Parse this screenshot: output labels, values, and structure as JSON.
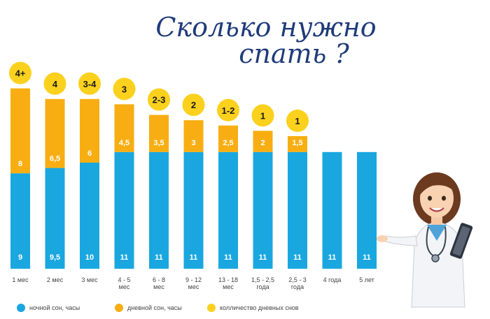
{
  "title": {
    "line1": "Сколько нужно",
    "line2": "спать ?"
  },
  "colors": {
    "night": "#1AA7E0",
    "day": "#F8AE12",
    "naps": "#FBD11E"
  },
  "legend": [
    {
      "label": "ночной сон, часы",
      "color": "#1AA7E0"
    },
    {
      "label": "дневной сон, часы",
      "color": "#F8AE12"
    },
    {
      "label": "колличество дневных снов",
      "color": "#FBD11E"
    }
  ],
  "chart_data": {
    "type": "bar",
    "stacked": true,
    "title": "Сколько нужно спать ?",
    "ylim": [
      0,
      19
    ],
    "categories": [
      [
        "1 мес"
      ],
      [
        "2 мес"
      ],
      [
        "3 мес"
      ],
      [
        "4 - 5",
        "мес"
      ],
      [
        "6 - 8",
        "мес"
      ],
      [
        "9 - 12",
        "мес"
      ],
      [
        "13 - 18",
        "мес"
      ],
      [
        "1,5 - 2,5",
        "года"
      ],
      [
        "2,5 - 3",
        "года"
      ],
      [
        "4 года"
      ],
      [
        "5 лет"
      ]
    ],
    "series": [
      {
        "name": "ночной сон, часы",
        "values": [
          9,
          9.5,
          10,
          11,
          11,
          11,
          11,
          11,
          11,
          11,
          11
        ],
        "labels": [
          "9",
          "9,5",
          "10",
          "11",
          "11",
          "11",
          "11",
          "11",
          "11",
          "11",
          "11"
        ]
      },
      {
        "name": "дневной сон, часы",
        "values": [
          8,
          6.5,
          6,
          4.5,
          3.5,
          3,
          2.5,
          2,
          1.5,
          0,
          0
        ],
        "labels": [
          "8",
          "6,5",
          "6",
          "4,5",
          "3,5",
          "3",
          "2,5",
          "2",
          "1,5",
          "",
          ""
        ]
      },
      {
        "name": "колличество дневных снов",
        "labels": [
          "4+",
          "4",
          "3-4",
          "3",
          "2-3",
          "2",
          "1-2",
          "1",
          "1",
          "",
          ""
        ]
      }
    ]
  }
}
